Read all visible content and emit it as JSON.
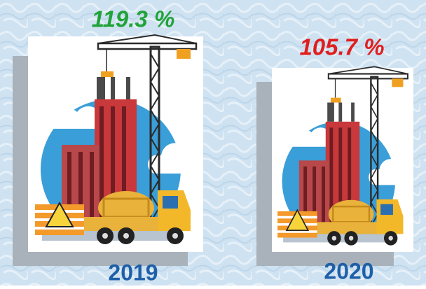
{
  "items": [
    {
      "percent": "119.3 %",
      "year": "2019"
    },
    {
      "percent": "105.7 %",
      "year": "2020"
    }
  ]
}
